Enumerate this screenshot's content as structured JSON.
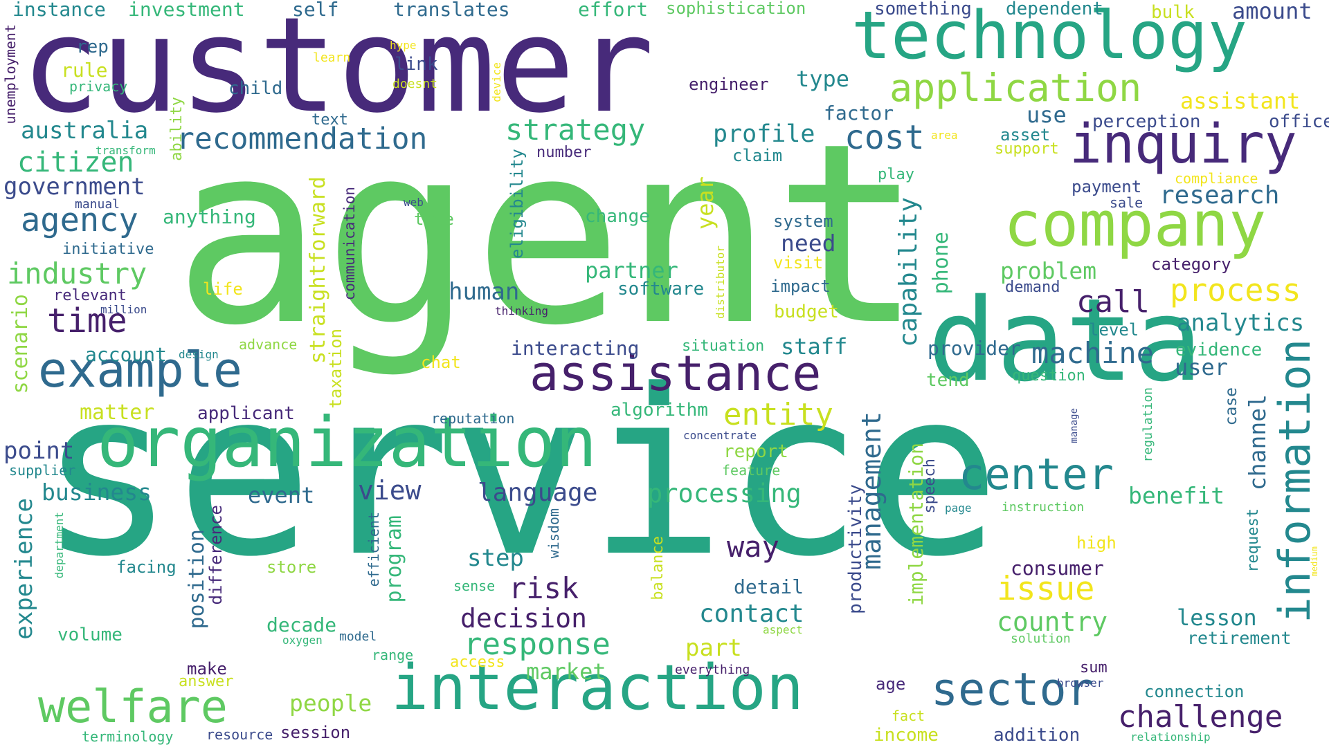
{
  "palette": {
    "dark_purple": "#46206b",
    "purple": "#472a7a",
    "indigo": "#3b4b8c",
    "blue": "#2f6a8e",
    "teal": "#23888e",
    "green_teal": "#26a584",
    "green": "#35b779",
    "light_green": "#5ec962",
    "lime": "#8fd744",
    "yellow": "#c8e020",
    "bright_yellow": "#f2e51d"
  },
  "words": [
    {
      "text": "agent",
      "color": "light_green"
    },
    {
      "text": "service",
      "color": "green_teal"
    },
    {
      "text": "customer",
      "color": "purple"
    },
    {
      "text": "data",
      "color": "green_teal"
    },
    {
      "text": "technology",
      "color": "green_teal"
    },
    {
      "text": "organization",
      "color": "green"
    },
    {
      "text": "interaction",
      "color": "green_teal"
    },
    {
      "text": "company",
      "color": "lime"
    },
    {
      "text": "assistance",
      "color": "dark_purple"
    },
    {
      "text": "inquiry",
      "color": "purple"
    },
    {
      "text": "example",
      "color": "blue"
    },
    {
      "text": "information",
      "color": "teal"
    },
    {
      "text": "sector",
      "color": "blue"
    },
    {
      "text": "welfare",
      "color": "light_green"
    },
    {
      "text": "application",
      "color": "lime"
    },
    {
      "text": "center",
      "color": "teal"
    },
    {
      "text": "recommendation",
      "color": "blue"
    },
    {
      "text": "time",
      "color": "dark_purple"
    },
    {
      "text": "cost",
      "color": "blue"
    },
    {
      "text": "process",
      "color": "bright_yellow"
    },
    {
      "text": "agency",
      "color": "blue"
    },
    {
      "text": "strategy",
      "color": "green"
    },
    {
      "text": "entity",
      "color": "yellow"
    },
    {
      "text": "industry",
      "color": "light_green"
    },
    {
      "text": "challenge",
      "color": "dark_purple"
    },
    {
      "text": "response",
      "color": "green"
    },
    {
      "text": "issue",
      "color": "bright_yellow"
    },
    {
      "text": "management",
      "color": "blue"
    },
    {
      "text": "machine",
      "color": "blue"
    },
    {
      "text": "citizen",
      "color": "green"
    },
    {
      "text": "call",
      "color": "dark_purple"
    },
    {
      "text": "view",
      "color": "indigo"
    },
    {
      "text": "risk",
      "color": "dark_purple"
    },
    {
      "text": "capability",
      "color": "teal"
    },
    {
      "text": "way",
      "color": "dark_purple"
    },
    {
      "text": "decision",
      "color": "dark_purple"
    },
    {
      "text": "profile",
      "color": "teal"
    },
    {
      "text": "language",
      "color": "indigo"
    },
    {
      "text": "processing",
      "color": "green"
    },
    {
      "text": "government",
      "color": "indigo"
    },
    {
      "text": "australia",
      "color": "teal"
    },
    {
      "text": "analytics",
      "color": "teal"
    },
    {
      "text": "research",
      "color": "blue"
    },
    {
      "text": "experience",
      "color": "teal"
    },
    {
      "text": "business",
      "color": "teal"
    },
    {
      "text": "point",
      "color": "indigo"
    },
    {
      "text": "country",
      "color": "light_green"
    },
    {
      "text": "contact",
      "color": "teal"
    },
    {
      "text": "step",
      "color": "teal"
    },
    {
      "text": "human",
      "color": "blue"
    },
    {
      "text": "straightforward",
      "color": "yellow"
    },
    {
      "text": "event",
      "color": "blue"
    },
    {
      "text": "partner",
      "color": "green"
    },
    {
      "text": "market",
      "color": "light_green"
    },
    {
      "text": "people",
      "color": "lime"
    },
    {
      "text": "problem",
      "color": "light_green"
    },
    {
      "text": "benefit",
      "color": "green"
    },
    {
      "text": "channel",
      "color": "blue"
    },
    {
      "text": "position",
      "color": "blue"
    },
    {
      "text": "program",
      "color": "green"
    },
    {
      "text": "implementation",
      "color": "lime"
    },
    {
      "text": "lesson",
      "color": "teal"
    },
    {
      "text": "part",
      "color": "yellow"
    },
    {
      "text": "phone",
      "color": "green"
    },
    {
      "text": "staff",
      "color": "teal"
    },
    {
      "text": "need",
      "color": "indigo"
    },
    {
      "text": "year",
      "color": "yellow"
    },
    {
      "text": "use",
      "color": "blue"
    },
    {
      "text": "assistant",
      "color": "bright_yellow"
    },
    {
      "text": "user",
      "color": "blue"
    },
    {
      "text": "amount",
      "color": "indigo"
    },
    {
      "text": "matter",
      "color": "yellow"
    },
    {
      "text": "detail",
      "color": "blue"
    },
    {
      "text": "volume",
      "color": "green"
    },
    {
      "text": "scenario",
      "color": "lime"
    },
    {
      "text": "consumer",
      "color": "dark_purple"
    },
    {
      "text": "type",
      "color": "teal"
    },
    {
      "text": "office",
      "color": "indigo"
    },
    {
      "text": "report",
      "color": "lime"
    },
    {
      "text": "provider",
      "color": "blue"
    },
    {
      "text": "eligibility",
      "color": "teal"
    },
    {
      "text": "account",
      "color": "teal"
    },
    {
      "text": "productivity",
      "color": "indigo"
    },
    {
      "text": "decade",
      "color": "green"
    },
    {
      "text": "retirement",
      "color": "teal"
    },
    {
      "text": "algorithm",
      "color": "green"
    },
    {
      "text": "evidence",
      "color": "green"
    },
    {
      "text": "perception",
      "color": "indigo"
    },
    {
      "text": "interacting",
      "color": "indigo"
    },
    {
      "text": "taxation",
      "color": "yellow"
    },
    {
      "text": "software",
      "color": "teal"
    },
    {
      "text": "anything",
      "color": "green"
    },
    {
      "text": "applicant",
      "color": "purple"
    },
    {
      "text": "factor",
      "color": "blue"
    },
    {
      "text": "instance",
      "color": "teal"
    },
    {
      "text": "investment",
      "color": "green"
    },
    {
      "text": "translates",
      "color": "blue"
    },
    {
      "text": "self",
      "color": "blue"
    },
    {
      "text": "effort",
      "color": "green"
    },
    {
      "text": "sophistication",
      "color": "light_green"
    },
    {
      "text": "something",
      "color": "indigo"
    },
    {
      "text": "dependent",
      "color": "teal"
    },
    {
      "text": "bulk",
      "color": "yellow"
    },
    {
      "text": "rep",
      "color": "blue"
    },
    {
      "text": "rule",
      "color": "yellow"
    },
    {
      "text": "privacy",
      "color": "green"
    },
    {
      "text": "ability",
      "color": "lime"
    },
    {
      "text": "child",
      "color": "blue"
    },
    {
      "text": "link",
      "color": "indigo"
    },
    {
      "text": "engineer",
      "color": "dark_purple"
    },
    {
      "text": "text",
      "color": "blue"
    },
    {
      "text": "communication",
      "color": "purple"
    },
    {
      "text": "initiative",
      "color": "blue"
    },
    {
      "text": "relevant",
      "color": "purple"
    },
    {
      "text": "change",
      "color": "green"
    },
    {
      "text": "tree",
      "color": "light_green"
    },
    {
      "text": "system",
      "color": "blue"
    },
    {
      "text": "visit",
      "color": "bright_yellow"
    },
    {
      "text": "impact",
      "color": "blue"
    },
    {
      "text": "budget",
      "color": "yellow"
    },
    {
      "text": "claim",
      "color": "teal"
    },
    {
      "text": "number",
      "color": "purple"
    },
    {
      "text": "asset",
      "color": "teal"
    },
    {
      "text": "support",
      "color": "yellow"
    },
    {
      "text": "play",
      "color": "green"
    },
    {
      "text": "payment",
      "color": "indigo"
    },
    {
      "text": "sale",
      "color": "indigo"
    },
    {
      "text": "compliance",
      "color": "bright_yellow"
    },
    {
      "text": "category",
      "color": "dark_purple"
    },
    {
      "text": "demand",
      "color": "indigo"
    },
    {
      "text": "level",
      "color": "teal"
    },
    {
      "text": "question",
      "color": "green"
    },
    {
      "text": "tend",
      "color": "light_green"
    },
    {
      "text": "situation",
      "color": "green"
    },
    {
      "text": "reputation",
      "color": "blue"
    },
    {
      "text": "concentrate",
      "color": "indigo"
    },
    {
      "text": "feature",
      "color": "light_green"
    },
    {
      "text": "distributor",
      "color": "yellow"
    },
    {
      "text": "manage",
      "color": "indigo"
    },
    {
      "text": "regulation",
      "color": "green"
    },
    {
      "text": "case",
      "color": "blue"
    },
    {
      "text": "speech",
      "color": "indigo"
    },
    {
      "text": "page",
      "color": "teal"
    },
    {
      "text": "instruction",
      "color": "light_green"
    },
    {
      "text": "high",
      "color": "bright_yellow"
    },
    {
      "text": "request",
      "color": "teal"
    },
    {
      "text": "medium",
      "color": "bright_yellow"
    },
    {
      "text": "solution",
      "color": "light_green"
    },
    {
      "text": "sum",
      "color": "dark_purple"
    },
    {
      "text": "browser",
      "color": "indigo"
    },
    {
      "text": "connection",
      "color": "teal"
    },
    {
      "text": "relationship",
      "color": "green"
    },
    {
      "text": "addition",
      "color": "indigo"
    },
    {
      "text": "income",
      "color": "yellow"
    },
    {
      "text": "fact",
      "color": "yellow"
    },
    {
      "text": "age",
      "color": "purple"
    },
    {
      "text": "everything",
      "color": "dark_purple"
    },
    {
      "text": "aspect",
      "color": "lime"
    },
    {
      "text": "access",
      "color": "bright_yellow"
    },
    {
      "text": "range",
      "color": "green"
    },
    {
      "text": "model",
      "color": "blue"
    },
    {
      "text": "oxygen",
      "color": "green"
    },
    {
      "text": "store",
      "color": "lime"
    },
    {
      "text": "balance",
      "color": "yellow"
    },
    {
      "text": "wisdom",
      "color": "blue"
    },
    {
      "text": "efficient",
      "color": "blue"
    },
    {
      "text": "sense",
      "color": "green"
    },
    {
      "text": "difference",
      "color": "purple"
    },
    {
      "text": "make",
      "color": "dark_purple"
    },
    {
      "text": "answer",
      "color": "yellow"
    },
    {
      "text": "facing",
      "color": "teal"
    },
    {
      "text": "department",
      "color": "green"
    },
    {
      "text": "supplier",
      "color": "teal"
    },
    {
      "text": "session",
      "color": "dark_purple"
    },
    {
      "text": "resource",
      "color": "indigo"
    },
    {
      "text": "terminology",
      "color": "green"
    },
    {
      "text": "chat",
      "color": "bright_yellow"
    },
    {
      "text": "advance",
      "color": "lime"
    },
    {
      "text": "design",
      "color": "teal"
    },
    {
      "text": "life",
      "color": "bright_yellow"
    },
    {
      "text": "million",
      "color": "indigo"
    },
    {
      "text": "thinking",
      "color": "dark_purple"
    },
    {
      "text": "manual",
      "color": "indigo"
    },
    {
      "text": "transform",
      "color": "green"
    },
    {
      "text": "web",
      "color": "indigo"
    },
    {
      "text": "unemployment",
      "color": "dark_purple"
    },
    {
      "text": "learn",
      "color": "bright_yellow"
    },
    {
      "text": "hype",
      "color": "bright_yellow"
    },
    {
      "text": "doesnt",
      "color": "yellow"
    },
    {
      "text": "device",
      "color": "bright_yellow"
    },
    {
      "text": "area",
      "color": "bright_yellow"
    }
  ]
}
